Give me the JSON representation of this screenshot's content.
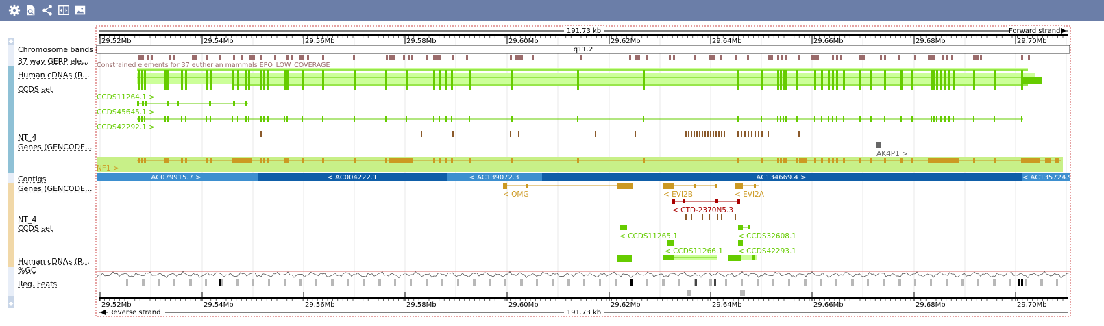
{
  "toolbar": {
    "icons": [
      "gear-icon",
      "document-icon",
      "share-icon",
      "resize-icon",
      "image-icon"
    ]
  },
  "ruler": {
    "top_span": "191.73 kb",
    "forward_strand": "Forward strand",
    "reverse_span": "191.73 kb",
    "reverse_strand": "Reverse strand",
    "ticks": [
      "29.52Mb",
      "29.54Mb",
      "29.56Mb",
      "29.58Mb",
      "29.60Mb",
      "29.62Mb",
      "29.64Mb",
      "29.66Mb",
      "29.68Mb",
      "29.70Mb"
    ]
  },
  "band": {
    "name": "q11.2"
  },
  "track_labels": {
    "chromosome_bands": "Chromosome bands",
    "gerp": "37 way GERP ele...",
    "human_cdnas": "Human cDNAs (R...",
    "ccds_set": "CCDS set",
    "nt4": "NT_4",
    "genes_gencode": "Genes (GENCODE...",
    "contigs": "Contigs",
    "genes_gencode_rev": "Genes (GENCODE...",
    "nt4_rev": "NT_4",
    "ccds_set_rev": "CCDS set",
    "human_cdnas_rev": "Human cDNAs (R...",
    "gc": "%GC",
    "reg_feats": "Reg. Feats"
  },
  "forward": {
    "gerp_caption": "Constrained elements for 37 eutherian mammals EPO_LOW_COVERAGE",
    "ccds": [
      "CCDS11264.1 >",
      "CCDS45645.1 >",
      "CCDS42292.1 >"
    ],
    "gene_ak4p1": "AK4P1 >",
    "gene_nf1": "NF1 >"
  },
  "contigs": [
    "AC079915.7 >",
    "< AC004222.1",
    "< AC139072.3",
    "AC134669.4 >",
    "< AC135724.9"
  ],
  "reverse": {
    "genes": [
      "< OMG",
      "< EVI2B",
      "< EVI2A",
      "< CTD-2370N5.3"
    ],
    "ccds": [
      "< CCDS11265.1",
      "< CCDS32608.1",
      "< CCDS11266.1",
      "< CCDS42293.1"
    ]
  },
  "colors": {
    "toolbar": "#6b7ea8",
    "gerp": "#9a6b6b",
    "cdna": "#66cc00",
    "cdna_fill": "#ccff99",
    "gene": "#cc9922",
    "gene_fill": "#c8f088",
    "contig_light": "#3d8fcf",
    "contig_dark": "#0f5ea8",
    "nt4": "#8b5a2b",
    "lnc": "#aa0000",
    "gc_line": "#cc3333",
    "reg": "#b8b8b8"
  }
}
